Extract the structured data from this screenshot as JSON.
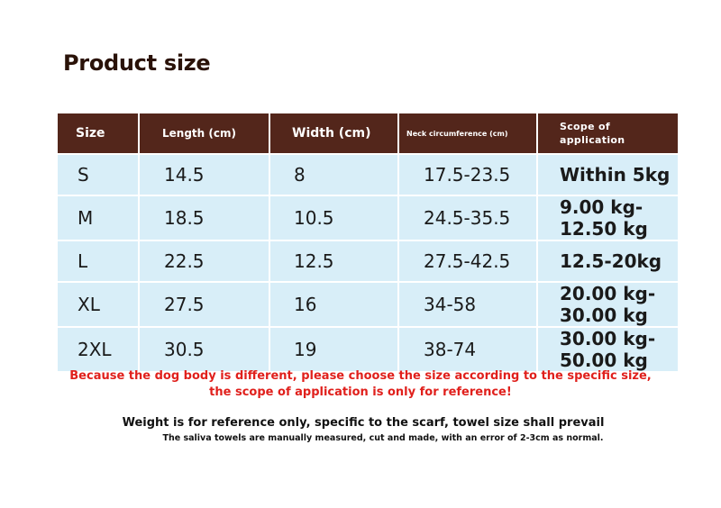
{
  "title": "Product size",
  "table": {
    "headers": {
      "size": "Size",
      "length": "Length (cm)",
      "width": "Width (cm)",
      "neck": "Neck circumference (cm)",
      "scope_line1": "Scope of",
      "scope_line2": "application"
    },
    "rows": [
      {
        "size": "S",
        "length": "14.5",
        "width": "8",
        "neck": "17.5-23.5",
        "scope": "Within 5kg"
      },
      {
        "size": "M",
        "length": "18.5",
        "width": "10.5",
        "neck": "24.5-35.5",
        "scope": "9.00 kg-12.50 kg"
      },
      {
        "size": "L",
        "length": "22.5",
        "width": "12.5",
        "neck": "27.5-42.5",
        "scope": "12.5-20kg"
      },
      {
        "size": "XL",
        "length": "27.5",
        "width": "16",
        "neck": "34-58",
        "scope": "20.00 kg-30.00 kg"
      },
      {
        "size": "2XL",
        "length": "30.5",
        "width": "19",
        "neck": "38-74",
        "scope": "30.00 kg-50.00 kg"
      }
    ]
  },
  "notes": {
    "red_line1": "Because the dog body is different, please choose the size according to the specific size,",
    "red_line2": "the scope of application is only for reference!",
    "weight": "Weight is for reference only, specific to the scarf, towel size shall prevail",
    "measure": "The saliva towels are manually measured, cut and made, with an error of 2-3cm as normal."
  },
  "colors": {
    "header_bg": "#53261b",
    "cell_bg": "#d8eef8",
    "notice_red": "#e0201c"
  }
}
